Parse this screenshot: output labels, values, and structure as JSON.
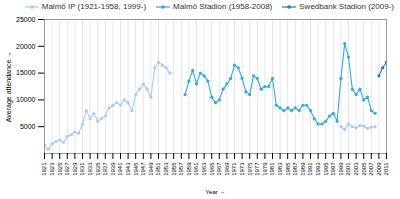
{
  "chart_data": {
    "type": "line",
    "xlabel": "Year",
    "ylabel": "Average attendance",
    "xlim": [
      1921,
      2011
    ],
    "xticks": [
      1921,
      1923,
      1925,
      1927,
      1929,
      1931,
      1933,
      1935,
      1937,
      1939,
      1941,
      1943,
      1945,
      1947,
      1949,
      1951,
      1953,
      1955,
      1957,
      1959,
      1961,
      1963,
      1965,
      1967,
      1969,
      1971,
      1973,
      1975,
      1977,
      1979,
      1981,
      1983,
      1985,
      1987,
      1989,
      1991,
      1993,
      1995,
      1997,
      1999,
      2001,
      2003,
      2005,
      2007,
      2009,
      2011
    ],
    "ylim": [
      0,
      25000
    ],
    "yticks": [
      5000,
      10000,
      15000,
      20000,
      25000
    ],
    "grid": "x",
    "legend": "upper right",
    "x": [
      1921,
      1922,
      1923,
      1924,
      1925,
      1926,
      1927,
      1928,
      1929,
      1930,
      1931,
      1932,
      1933,
      1934,
      1935,
      1936,
      1937,
      1938,
      1939,
      1940,
      1941,
      1942,
      1943,
      1944,
      1945,
      1946,
      1947,
      1948,
      1949,
      1950,
      1951,
      1952,
      1953,
      1954,
      1955,
      1956,
      1957,
      1958,
      1959,
      1960,
      1961,
      1962,
      1963,
      1964,
      1965,
      1966,
      1967,
      1968,
      1969,
      1970,
      1971,
      1972,
      1973,
      1974,
      1975,
      1976,
      1977,
      1978,
      1979,
      1980,
      1981,
      1982,
      1983,
      1984,
      1985,
      1986,
      1987,
      1988,
      1989,
      1990,
      1991,
      1992,
      1993,
      1994,
      1995,
      1996,
      1997,
      1998,
      1999,
      2000,
      2001,
      2002,
      2003,
      2004,
      2005,
      2006,
      2007,
      2008,
      2009,
      2010,
      2011
    ],
    "series": [
      {
        "name": "Malmö IP (1921-1958, 1999-)",
        "color": "#aaccee",
        "marker": "circle",
        "values": [
          1500,
          800,
          1800,
          2200,
          2500,
          2100,
          3200,
          3500,
          4000,
          3800,
          5500,
          8000,
          6500,
          7500,
          6000,
          6500,
          7000,
          8500,
          9000,
          9500,
          9000,
          10000,
          9500,
          8000,
          11000,
          12000,
          13000,
          12000,
          10500,
          16000,
          17000,
          16500,
          16000,
          15000,
          null,
          null,
          null,
          null,
          null,
          null,
          null,
          null,
          null,
          null,
          null,
          null,
          null,
          null,
          null,
          null,
          null,
          null,
          null,
          null,
          null,
          null,
          null,
          null,
          null,
          null,
          null,
          null,
          null,
          null,
          null,
          null,
          null,
          null,
          null,
          null,
          null,
          null,
          null,
          null,
          null,
          null,
          null,
          null,
          5000,
          4500,
          5500,
          5000,
          4800,
          5200,
          5100,
          4700,
          4900,
          5000,
          null,
          null,
          null
        ]
      },
      {
        "name": "Malmö Stadion (1958-2008)",
        "color": "#33aadd",
        "marker": "circle",
        "values": [
          null,
          null,
          null,
          null,
          null,
          null,
          null,
          null,
          null,
          null,
          null,
          null,
          null,
          null,
          null,
          null,
          null,
          null,
          null,
          null,
          null,
          null,
          null,
          null,
          null,
          null,
          null,
          null,
          null,
          null,
          null,
          null,
          null,
          null,
          null,
          null,
          null,
          11000,
          13500,
          15500,
          13000,
          15000,
          14500,
          13500,
          10500,
          9500,
          10000,
          12000,
          13000,
          14000,
          16500,
          16000,
          14000,
          11500,
          11000,
          14500,
          14000,
          12000,
          12500,
          12500,
          14000,
          9000,
          8500,
          8000,
          8500,
          8000,
          8500,
          8000,
          9000,
          9000,
          8000,
          6500,
          5500,
          5500,
          6000,
          7000,
          7500,
          6000,
          14000,
          20500,
          18000,
          12000,
          11000,
          12000,
          10000,
          10500,
          8000,
          7500,
          null,
          null,
          null
        ]
      },
      {
        "name": "Swedbank Stadion (2009-)",
        "color": "#2277cc",
        "marker": "circle",
        "values": [
          null,
          null,
          null,
          null,
          null,
          null,
          null,
          null,
          null,
          null,
          null,
          null,
          null,
          null,
          null,
          null,
          null,
          null,
          null,
          null,
          null,
          null,
          null,
          null,
          null,
          null,
          null,
          null,
          null,
          null,
          null,
          null,
          null,
          null,
          null,
          null,
          null,
          null,
          null,
          null,
          null,
          null,
          null,
          null,
          null,
          null,
          null,
          null,
          null,
          null,
          null,
          null,
          null,
          null,
          null,
          null,
          null,
          null,
          null,
          null,
          null,
          null,
          null,
          null,
          null,
          null,
          null,
          null,
          null,
          null,
          null,
          null,
          null,
          null,
          null,
          null,
          null,
          null,
          null,
          null,
          null,
          null,
          null,
          null,
          null,
          null,
          null,
          null,
          14500,
          16000,
          17000
        ]
      }
    ]
  }
}
